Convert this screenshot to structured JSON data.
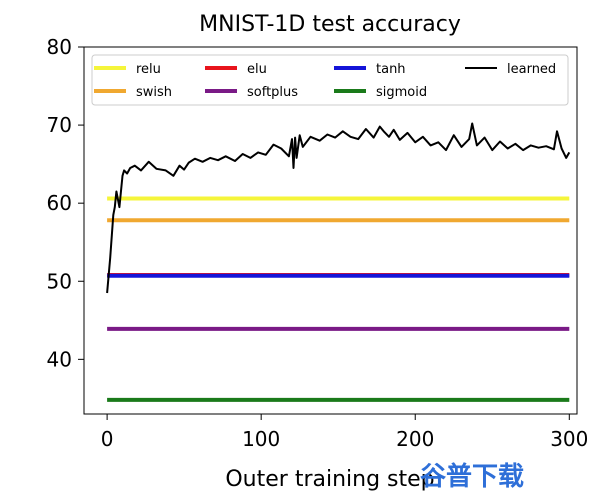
{
  "chart_data": {
    "type": "line",
    "title": "MNIST-1D test accuracy",
    "xlabel": "Outer training step",
    "ylabel": "",
    "xlim": [
      -15,
      305
    ],
    "ylim": [
      33,
      80
    ],
    "xticks": [
      0,
      100,
      200,
      300
    ],
    "yticks": [
      40,
      50,
      60,
      70,
      80
    ],
    "grid": false,
    "legend_position": "top",
    "series": [
      {
        "name": "relu",
        "color": "#f5f53a",
        "x": [
          0,
          300
        ],
        "y": [
          60.6,
          60.6
        ]
      },
      {
        "name": "swish",
        "color": "#f0a830",
        "x": [
          0,
          300
        ],
        "y": [
          57.8,
          57.8
        ]
      },
      {
        "name": "elu",
        "color": "#e8141c",
        "x": [
          0,
          300
        ],
        "y": [
          50.8,
          50.8
        ]
      },
      {
        "name": "softplus",
        "color": "#7a1a86",
        "x": [
          0,
          300
        ],
        "y": [
          43.9,
          43.9
        ]
      },
      {
        "name": "tanh",
        "color": "#1414d8",
        "x": [
          0,
          300
        ],
        "y": [
          50.7,
          50.7
        ]
      },
      {
        "name": "sigmoid",
        "color": "#1a7a1a",
        "x": [
          0,
          300
        ],
        "y": [
          34.8,
          34.8
        ]
      },
      {
        "name": "learned",
        "color": "#000000",
        "x": [
          0,
          2,
          4,
          5,
          6,
          8,
          10,
          11,
          13,
          15,
          18,
          22,
          27,
          32,
          38,
          43,
          47,
          50,
          53,
          57,
          62,
          67,
          72,
          77,
          83,
          88,
          93,
          98,
          103,
          108,
          113,
          118,
          120,
          121,
          122,
          123,
          125,
          127,
          132,
          138,
          143,
          148,
          153,
          158,
          163,
          168,
          173,
          177,
          180,
          183,
          186,
          190,
          195,
          200,
          205,
          210,
          215,
          220,
          225,
          230,
          235,
          237,
          240,
          245,
          250,
          255,
          260,
          265,
          270,
          275,
          280,
          285,
          290,
          292,
          295,
          298,
          300
        ],
        "y": [
          48.5,
          53,
          58.5,
          59.5,
          61.5,
          59.5,
          63.5,
          64.2,
          63.8,
          64.5,
          64.8,
          64.2,
          65.3,
          64.4,
          64.2,
          63.5,
          64.8,
          64.3,
          65.2,
          65.7,
          65.3,
          65.8,
          65.5,
          66.0,
          65.4,
          66.3,
          65.8,
          66.5,
          66.2,
          67.5,
          67.0,
          66.0,
          68.2,
          64.5,
          68.4,
          65.8,
          68.7,
          67.2,
          68.5,
          68.0,
          68.8,
          68.4,
          69.2,
          68.5,
          68.2,
          69.5,
          68.4,
          69.8,
          69.1,
          68.5,
          69.4,
          68.1,
          69.0,
          67.8,
          68.5,
          67.4,
          67.8,
          66.8,
          68.7,
          67.2,
          68.2,
          70.2,
          67.4,
          68.4,
          66.8,
          67.9,
          67.0,
          67.6,
          66.8,
          67.4,
          67.1,
          67.3,
          66.9,
          69.2,
          67.0,
          65.8,
          66.5
        ]
      }
    ]
  },
  "watermark": {
    "text": "谷普下载"
  }
}
